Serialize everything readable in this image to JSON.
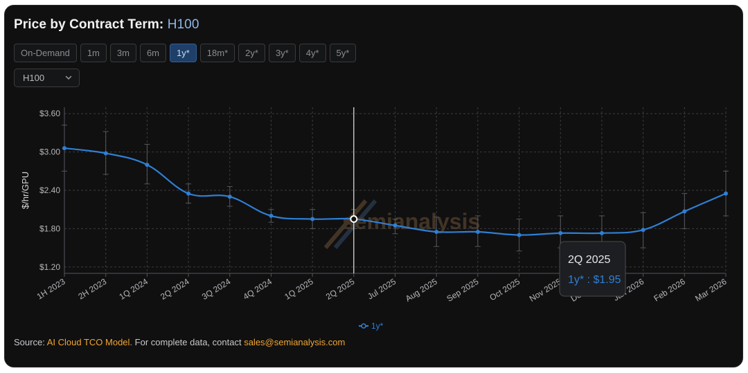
{
  "title": {
    "main": "Price by Contract Term:",
    "accent": "H100"
  },
  "term_tabs": [
    {
      "label": "On-Demand",
      "active": false
    },
    {
      "label": "1m",
      "active": false
    },
    {
      "label": "3m",
      "active": false
    },
    {
      "label": "6m",
      "active": false
    },
    {
      "label": "1y*",
      "active": true
    },
    {
      "label": "18m*",
      "active": false
    },
    {
      "label": "2y*",
      "active": false
    },
    {
      "label": "3y*",
      "active": false
    },
    {
      "label": "4y*",
      "active": false
    },
    {
      "label": "5y*",
      "active": false
    }
  ],
  "gpu_select": {
    "value": "H100"
  },
  "chart_data": {
    "type": "line",
    "ylabel": "$/hr/GPU",
    "xlabel": "",
    "ylim": [
      1.1,
      3.7
    ],
    "yticks": [
      1.2,
      1.8,
      2.4,
      3.0,
      3.6
    ],
    "ytick_labels": [
      "$1.20",
      "$1.80",
      "$2.40",
      "$3.00",
      "$3.60"
    ],
    "categories": [
      "1H 2023",
      "2H 2023",
      "1Q 2024",
      "2Q 2024",
      "3Q 2024",
      "4Q 2024",
      "1Q 2025",
      "2Q 2025",
      "Jul 2025",
      "Aug 2025",
      "Sep 2025",
      "Oct 2025",
      "Nov 2025",
      "Dec 2025",
      "Jan 2026",
      "Feb 2026",
      "Mar 2026"
    ],
    "series": [
      {
        "name": "1y*",
        "color": "#2f7fd4",
        "values": [
          3.06,
          2.98,
          2.8,
          2.35,
          2.3,
          2.0,
          1.95,
          1.95,
          1.85,
          1.75,
          1.75,
          1.7,
          1.73,
          1.73,
          1.78,
          2.07,
          2.35
        ],
        "error_low": [
          2.7,
          2.65,
          2.5,
          2.2,
          2.15,
          1.9,
          1.8,
          1.8,
          1.72,
          1.52,
          1.52,
          1.45,
          1.5,
          1.52,
          1.5,
          1.8,
          2.0
        ],
        "error_high": [
          3.42,
          3.32,
          3.12,
          2.5,
          2.46,
          2.1,
          2.1,
          2.1,
          1.95,
          1.98,
          2.0,
          1.95,
          2.0,
          2.0,
          2.05,
          2.35,
          2.7
        ]
      }
    ],
    "grid": true,
    "legend": "bottom-center",
    "hover": {
      "category_index": 7,
      "title": "2Q 2025",
      "text": "1y* : $1.95"
    },
    "watermark": "semianalysis"
  },
  "source": {
    "prefix": "Source:",
    "model_link": "AI Cloud TCO Model.",
    "middle": "For complete data, contact",
    "email": "sales@semianalysis.com"
  }
}
